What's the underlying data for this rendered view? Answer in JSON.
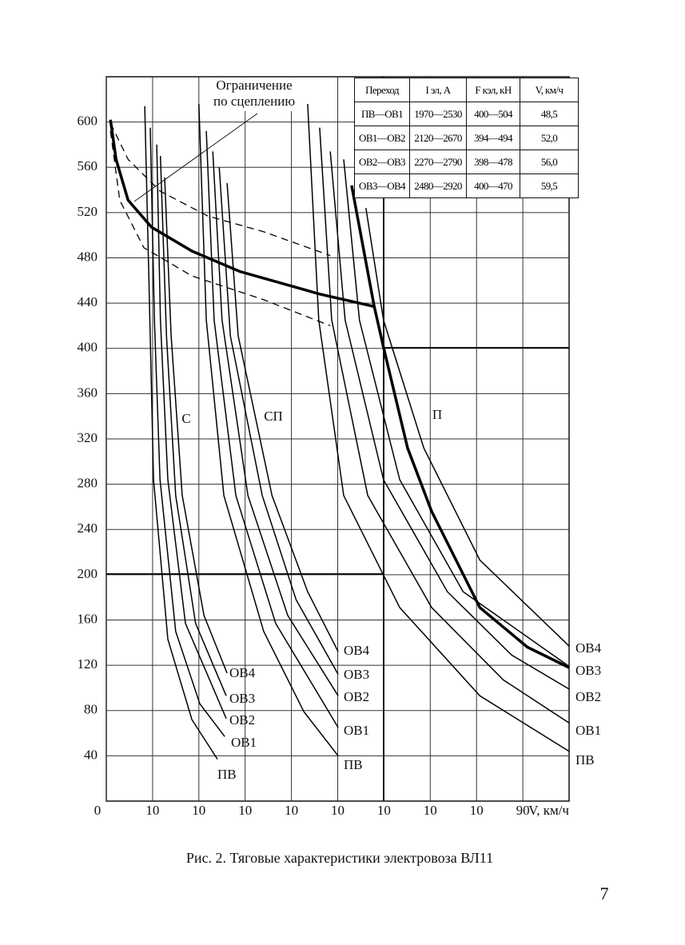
{
  "chart_data": {
    "type": "line",
    "annotation": "Ограничение по сцеплению",
    "x_label": "V, км/ч",
    "caption": "Рис. 2. Тяговые характеристики электровоза ВЛ11",
    "page_number": "7",
    "color": "#000000",
    "grid": true,
    "xlim": [
      0,
      100
    ],
    "ylim": [
      0,
      640
    ],
    "xticks": [
      0,
      10,
      {
        "value": 20,
        "label": "10"
      },
      {
        "value": 30,
        "label": "10"
      },
      {
        "value": 40,
        "label": "10"
      },
      {
        "value": 50,
        "label": "10"
      },
      {
        "value": 60,
        "label": "10"
      },
      {
        "value": 70,
        "label": "10"
      },
      {
        "value": 80,
        "label": "10"
      },
      90
    ],
    "yticks": [
      40,
      80,
      120,
      160,
      200,
      240,
      280,
      320,
      360,
      400,
      440,
      480,
      520,
      560,
      600
    ],
    "groups": [
      {
        "label": "С",
        "series": [
          {
            "name": "ПВ",
            "x": [
              8.3,
              9.2,
              10.2,
              13.3,
              18.5,
              24.0
            ],
            "values": [
              614,
              461,
              284,
              143,
              72,
              37
            ]
          },
          {
            "name": "ОВ1",
            "x": [
              9.5,
              10.4,
              11.6,
              15.0,
              20.2,
              25.6
            ],
            "values": [
              595,
              425,
              284,
              150,
              86,
              57
            ]
          },
          {
            "name": "ОВ2",
            "x": [
              10.9,
              11.7,
              13.3,
              17.1,
              25.9
            ],
            "values": [
              580,
              425,
              284,
              157,
              73
            ]
          },
          {
            "name": "ОВ3",
            "x": [
              11.7,
              13.0,
              15.0,
              19.3,
              25.9
            ],
            "values": [
              570,
              411,
              270,
              157,
              93
            ]
          },
          {
            "name": "ОВ4",
            "x": [
              12.6,
              14.0,
              16.4,
              21.1,
              26.1
            ],
            "values": [
              551,
              411,
              270,
              164,
              113
            ]
          }
        ]
      },
      {
        "label": "СП",
        "series": [
          {
            "name": "ПВ",
            "x": [
              20.0,
              21.6,
              25.4,
              34.0,
              42.7,
              50.1
            ],
            "values": [
              616,
              425,
              270,
              150,
              79,
              40
            ]
          },
          {
            "name": "ОВ1",
            "x": [
              21.6,
              23.3,
              28.0,
              36.6,
              50.1
            ],
            "values": [
              592,
              425,
              270,
              157,
              65
            ]
          },
          {
            "name": "ОВ2",
            "x": [
              23.0,
              25.0,
              30.6,
              39.2,
              50.1
            ],
            "values": [
              574,
              425,
              270,
              164,
              93
            ]
          },
          {
            "name": "ОВ3",
            "x": [
              24.4,
              26.8,
              33.7,
              41.0,
              50.1
            ],
            "values": [
              560,
              411,
              270,
              178,
              112
            ]
          },
          {
            "name": "ОВ4",
            "x": [
              26.1,
              28.5,
              35.8,
              43.5,
              50.1
            ],
            "values": [
              546,
              411,
              270,
              185,
              132
            ]
          }
        ]
      },
      {
        "label": "П",
        "series": [
          {
            "name": "ПВ",
            "x": [
              43.5,
              45.9,
              51.3,
              63.4,
              80.7,
              100
            ],
            "values": [
              616,
              425,
              270,
              171,
              93,
              44
            ]
          },
          {
            "name": "ОВ1",
            "x": [
              46.1,
              48.7,
              56.5,
              70.3,
              85.8,
              100
            ],
            "values": [
              595,
              425,
              270,
              171,
              107,
              69
            ]
          },
          {
            "name": "ОВ2",
            "x": [
              48.4,
              51.6,
              59.9,
              73.7,
              87.6,
              100
            ],
            "values": [
              574,
              425,
              284,
              185,
              129,
              99
            ]
          },
          {
            "name": "ОВ3",
            "x": [
              51.3,
              54.7,
              63.4,
              77.1,
              100
            ],
            "values": [
              567,
              425,
              284,
              185,
              119
            ]
          },
          {
            "name": "ОВ4",
            "x": [
              56.1,
              59.9,
              68.6,
              80.7,
              100
            ],
            "values": [
              524,
              425,
              312,
              213,
              137
            ]
          }
        ]
      }
    ],
    "limit_curves": [
      {
        "x": [
          0.9,
          2.1,
          4.7,
          9.8,
          18.5,
          28.8,
          46.1,
          57.9
        ],
        "values": [
          602,
          567,
          531,
          507,
          486,
          468,
          448,
          437
        ]
      },
      {
        "x": [
          53.0,
          57.9,
          59.9,
          65.1,
          70.3,
          80.7,
          91.0,
          100
        ],
        "values": [
          544,
          437,
          401,
          312,
          256,
          171,
          136,
          118
        ]
      }
    ],
    "dashed_curves": [
      {
        "x": [
          0.9,
          4.7,
          11.6,
          21.9,
          34.0,
          48.4
        ],
        "values": [
          599,
          567,
          539,
          517,
          503,
          482
        ]
      },
      {
        "x": [
          0.9,
          2.9,
          8.1,
          18.5,
          34.0,
          48.4
        ],
        "values": [
          592,
          531,
          489,
          464,
          443,
          420
        ]
      }
    ],
    "table": {
      "header": [
        "Переход",
        "I эл, А",
        "F кэл, кН",
        "V, км/ч"
      ],
      "rows": [
        [
          "ПВ—ОВ1",
          "1970—2530",
          "400—504",
          "48,5"
        ],
        [
          "ОВ1—ОВ2",
          "2120—2670",
          "394—494",
          "52,0"
        ],
        [
          "ОВ2—ОВ3",
          "2270—2790",
          "398—478",
          "56,0"
        ],
        [
          "ОВ3—ОВ4",
          "2480—2920",
          "400—470",
          "59,5"
        ]
      ]
    }
  }
}
